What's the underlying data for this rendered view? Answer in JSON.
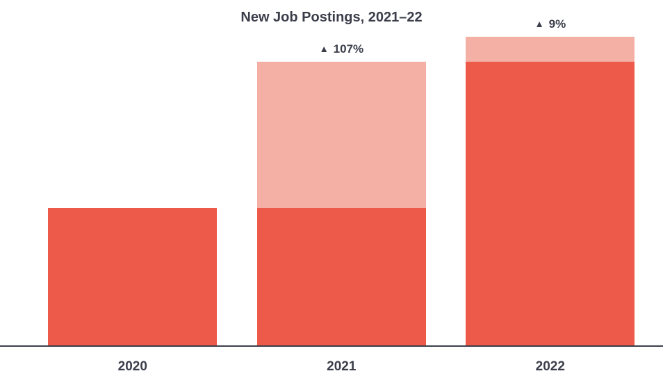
{
  "chart": {
    "type": "bar",
    "title": "New Job Postings, 2021–22",
    "title_fontsize": 20,
    "background_color": "#ffffff",
    "axis_color": "#3b3e4a",
    "text_color": "#3b3e4a",
    "label_fontsize": 19,
    "delta_fontsize": 17,
    "y_max": 100,
    "bar_width_pct": 25.5,
    "bars": [
      {
        "category": "2020",
        "x_center_pct": 20.0,
        "segments": [
          {
            "value": 44,
            "color": "#ee5a4a"
          }
        ],
        "total": 44,
        "delta": null
      },
      {
        "category": "2021",
        "x_center_pct": 51.5,
        "segments": [
          {
            "value": 44,
            "color": "#ee5a4a"
          },
          {
            "value": 47,
            "color": "#f5b0a5"
          }
        ],
        "total": 91,
        "delta": "107%"
      },
      {
        "category": "2022",
        "x_center_pct": 83.0,
        "segments": [
          {
            "value": 91,
            "color": "#ee5a4a"
          },
          {
            "value": 8,
            "color": "#f5b0a5"
          }
        ],
        "total": 99,
        "delta": "9%"
      }
    ]
  }
}
